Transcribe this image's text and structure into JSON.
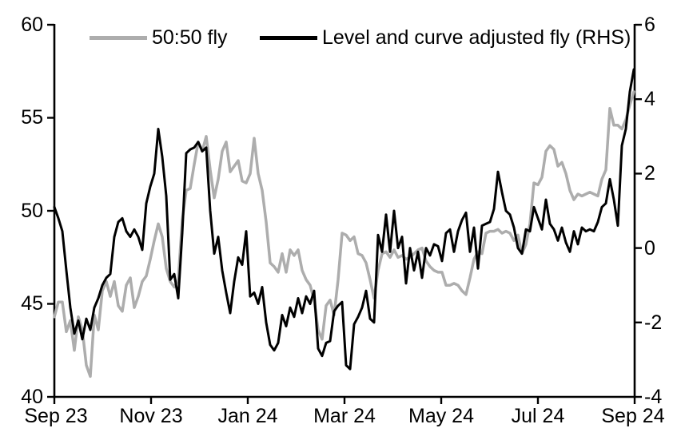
{
  "chart_data": {
    "type": "line",
    "title": "",
    "x_axis": {
      "tick_labels": [
        "Sep 23",
        "Nov 23",
        "Jan 24",
        "Mar 24",
        "May 24",
        "Jul 24",
        "Sep 24"
      ],
      "note": "daily data, Sep 2023 to Sep 2024, points evenly spaced"
    },
    "left_axis": {
      "min": 40,
      "max": 60,
      "ticks": [
        60,
        55,
        50,
        45,
        40
      ],
      "tick_labels": [
        "60",
        "55",
        "50",
        "45",
        "40"
      ]
    },
    "right_axis": {
      "min": -4,
      "max": 6,
      "ticks": [
        6,
        4,
        2,
        0,
        -2,
        -4
      ],
      "tick_labels": [
        "6",
        "4",
        "2",
        "0",
        "-2",
        "-4"
      ]
    },
    "legend": [
      {
        "label": "50:50 fly",
        "color": "#adadad",
        "axis": "left"
      },
      {
        "label": "Level and curve adjusted fly (RHS)",
        "color": "#000000",
        "axis": "right"
      }
    ],
    "colors": {
      "axis": "#000000",
      "background": "#ffffff"
    },
    "grid": false,
    "series": [
      {
        "name": "50:50 fly",
        "axis": "left",
        "color": "#adadad",
        "values": [
          44.3,
          45.1,
          45.1,
          43.5,
          44.1,
          42.5,
          44.3,
          43.6,
          41.7,
          41.1,
          44.4,
          43.6,
          45.7,
          46.2,
          45.4,
          46.2,
          44.9,
          44.6,
          46.0,
          46.4,
          44.8,
          45.4,
          46.2,
          46.5,
          47.4,
          48.4,
          49.3,
          48.6,
          46.9,
          46.2,
          45.9,
          46.3,
          49.5,
          51.1,
          51.2,
          52.5,
          53.7,
          53.2,
          54.0,
          52.2,
          50.7,
          51.7,
          53.2,
          53.7,
          52.1,
          52.4,
          52.7,
          51.6,
          51.5,
          52.0,
          53.9,
          52.0,
          51.1,
          49.4,
          47.2,
          47.0,
          46.7,
          47.7,
          46.7,
          47.9,
          47.6,
          47.9,
          46.8,
          46.3,
          46.0,
          45.2,
          43.6,
          43.1,
          44.9,
          45.2,
          44.4,
          46.3,
          48.8,
          48.7,
          48.4,
          48.6,
          47.7,
          47.6,
          47.2,
          46.3,
          45.3,
          46.8,
          47.7,
          47.8,
          47.5,
          47.9,
          47.5,
          47.6,
          47.4,
          47.5,
          47.7,
          47.9,
          48.0,
          47.3,
          47.0,
          46.8,
          46.7,
          46.7,
          46.0,
          46.0,
          46.1,
          46.0,
          45.7,
          45.5,
          46.4,
          47.4,
          47.8,
          47.7,
          48.8,
          48.9,
          48.9,
          49.0,
          48.8,
          48.9,
          48.8,
          48.4,
          48.7,
          47.7,
          48.2,
          49.3,
          51.5,
          51.4,
          51.8,
          53.2,
          53.5,
          53.3,
          52.4,
          52.6,
          52.0,
          51.1,
          50.6,
          50.9,
          50.8,
          50.9,
          51.0,
          50.9,
          50.8,
          51.7,
          52.2,
          55.5,
          54.6,
          54.6,
          54.4,
          54.9,
          55.7,
          56.4
        ]
      },
      {
        "name": "Level and curve adjusted fly (RHS)",
        "axis": "right",
        "color": "#000000",
        "values": [
          1.1,
          0.8,
          0.45,
          -0.6,
          -1.6,
          -2.3,
          -1.95,
          -2.45,
          -1.9,
          -2.2,
          -1.6,
          -1.35,
          -1.0,
          -0.8,
          -0.7,
          0.3,
          0.7,
          0.8,
          0.45,
          0.3,
          0.5,
          0.3,
          -0.05,
          1.2,
          1.65,
          2.0,
          3.2,
          2.45,
          1.4,
          -0.85,
          -0.7,
          -1.35,
          0.4,
          2.55,
          2.65,
          2.7,
          2.85,
          2.6,
          2.7,
          1.0,
          -0.15,
          0.3,
          -0.6,
          -1.2,
          -1.75,
          -0.9,
          -0.25,
          -0.45,
          0.45,
          -1.3,
          -1.2,
          -1.5,
          -1.05,
          -2.0,
          -2.6,
          -2.75,
          -2.55,
          -1.8,
          -2.1,
          -1.6,
          -1.85,
          -1.35,
          -1.75,
          -1.3,
          -1.5,
          -1.15,
          -2.7,
          -2.9,
          -2.55,
          -2.5,
          -1.7,
          -1.55,
          -1.45,
          -3.15,
          -3.25,
          -2.05,
          -1.85,
          -1.6,
          -1.15,
          -1.9,
          -2.0,
          0.35,
          -0.1,
          0.9,
          -0.1,
          1.0,
          0.0,
          0.3,
          -0.95,
          0.0,
          -0.6,
          -0.1,
          -0.8,
          0.0,
          -0.2,
          0.1,
          0.05,
          -0.35,
          0.4,
          0.5,
          -0.1,
          0.45,
          0.75,
          0.95,
          -0.1,
          0.55,
          -0.55,
          0.6,
          0.65,
          0.7,
          1.05,
          2.05,
          1.5,
          1.0,
          0.9,
          0.55,
          0.0,
          -0.15,
          0.5,
          0.45,
          1.1,
          0.8,
          0.5,
          1.3,
          0.65,
          0.5,
          0.2,
          0.55,
          0.15,
          -0.1,
          0.45,
          0.1,
          0.55,
          0.45,
          0.5,
          0.45,
          0.7,
          1.1,
          1.2,
          1.85,
          1.3,
          0.6,
          2.75,
          3.2,
          4.2,
          4.8
        ]
      }
    ]
  }
}
